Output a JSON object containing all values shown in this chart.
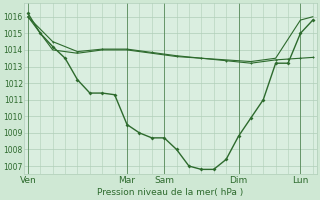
{
  "background_color": "#cfe8d4",
  "plot_bg_color": "#daeee0",
  "grid_color": "#b0ceb8",
  "line_color": "#2d6a2d",
  "x_ticks_labels": [
    "Ven",
    "Mar",
    "Sam",
    "Dim",
    "Lun"
  ],
  "x_ticks_pos": [
    0,
    8,
    11,
    17,
    22
  ],
  "xlim": [
    -0.3,
    23.3
  ],
  "xlabel": "Pression niveau de la mer( hPa )",
  "ylim": [
    1006.5,
    1016.8
  ],
  "yticks": [
    1007,
    1008,
    1009,
    1010,
    1011,
    1012,
    1013,
    1014,
    1015,
    1016
  ],
  "series1_x": [
    0,
    1,
    2,
    3,
    4,
    5,
    6,
    7,
    8,
    9,
    10,
    11,
    12,
    13,
    14,
    15,
    16,
    17,
    18,
    19,
    20,
    21,
    22,
    23
  ],
  "series1_y": [
    1016.2,
    1015.0,
    1014.2,
    1013.5,
    1012.2,
    1011.4,
    1011.4,
    1011.3,
    1009.5,
    1009.0,
    1008.7,
    1008.7,
    1008.0,
    1007.0,
    1006.8,
    1006.8,
    1007.4,
    1008.8,
    1009.9,
    1011.0,
    1013.2,
    1013.2,
    1015.0,
    1015.8
  ],
  "series2_x": [
    0,
    2,
    4,
    6,
    8,
    10,
    12,
    14,
    16,
    18,
    20,
    22,
    23
  ],
  "series2_y": [
    1016.0,
    1014.0,
    1013.8,
    1014.0,
    1014.0,
    1013.8,
    1013.6,
    1013.5,
    1013.4,
    1013.3,
    1013.5,
    1015.8,
    1016.0
  ],
  "series3_x": [
    0,
    2,
    4,
    6,
    8,
    10,
    12,
    14,
    16,
    18,
    20,
    21,
    22,
    23
  ],
  "series3_y": [
    1016.0,
    1014.5,
    1013.9,
    1014.05,
    1014.05,
    1013.85,
    1013.65,
    1013.5,
    1013.35,
    1013.2,
    1013.4,
    1013.45,
    1013.5,
    1013.55
  ],
  "figsize": [
    3.2,
    2.0
  ],
  "dpi": 100
}
